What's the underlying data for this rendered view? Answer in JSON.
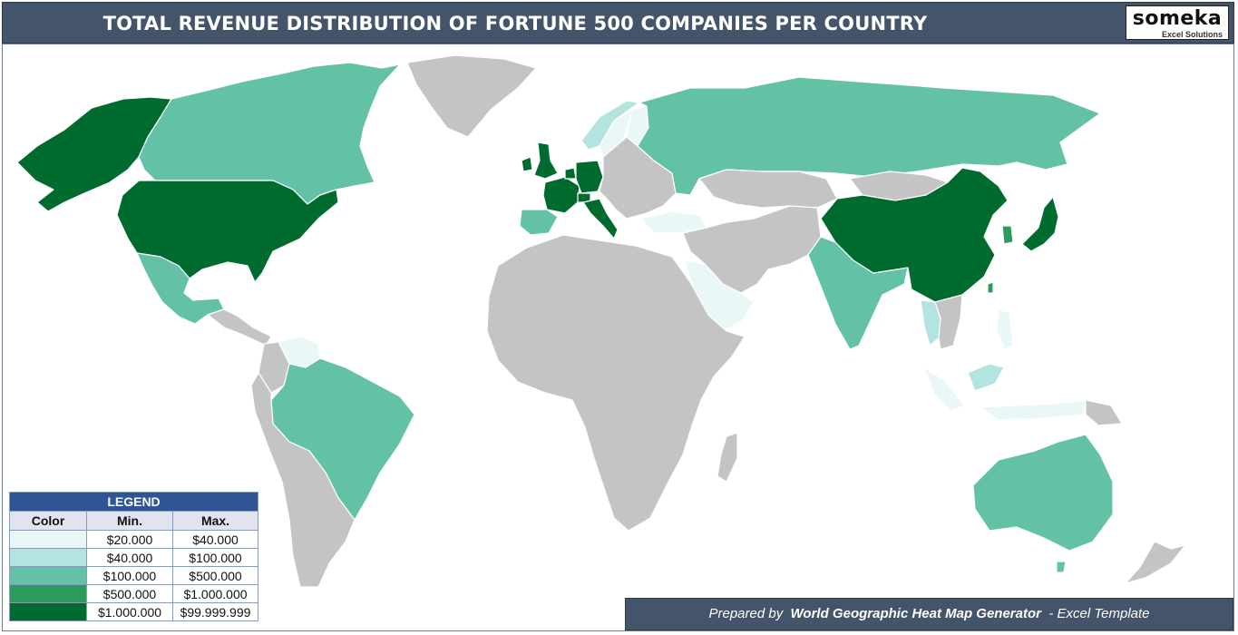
{
  "title": "TOTAL REVENUE DISTRIBUTION OF FORTUNE 500 COMPANIES PER COUNTRY",
  "logo": {
    "word": "someka",
    "sub": "Excel Solutions"
  },
  "legend": {
    "title": "LEGEND",
    "headers": {
      "color": "Color",
      "min": "Min.",
      "max": "Max."
    },
    "rows": [
      {
        "color": "#eaf7f7",
        "min": "$20.000",
        "max": "$40.000"
      },
      {
        "color": "#b3e4df",
        "min": "$40.000",
        "max": "$100.000"
      },
      {
        "color": "#63c2a5",
        "min": "$100.000",
        "max": "$500.000"
      },
      {
        "color": "#2b9a5a",
        "min": "$500.000",
        "max": "$1.000.000"
      },
      {
        "color": "#006b2f",
        "min": "$1.000.000",
        "max": "$99.999.999"
      }
    ],
    "no_data_color": "#c4c4c4"
  },
  "footer": {
    "prefix": "Prepared by",
    "product": "World Geographic Heat Map Generator",
    "suffix": "- Excel Template"
  },
  "map": {
    "type": "choropleth",
    "regions": {
      "alaska": 4,
      "usa": 4,
      "canada": 2,
      "greenland": null,
      "mexico": 2,
      "central-america": null,
      "venezuela": 0,
      "colombia": null,
      "brazil": 2,
      "rest-south-america": null,
      "uk": 4,
      "ireland": 4,
      "france": 4,
      "germany": 4,
      "italy": 4,
      "spain": 2,
      "switzerland": 4,
      "netherlands": 4,
      "norway": 1,
      "sweden": 0,
      "finland": 0,
      "rest-europe": null,
      "turkey": 0,
      "russia": 2,
      "africa": null,
      "saudi-arabia": 0,
      "middle-east": null,
      "kazakhstan": null,
      "india": 2,
      "china": 4,
      "mongolia": null,
      "south-korea": 3,
      "japan": 4,
      "thailand": 1,
      "indonesia": 0,
      "malaysia": 1,
      "philippines": 0,
      "taiwan": 3,
      "australia": 2,
      "new-zealand": null
    }
  }
}
